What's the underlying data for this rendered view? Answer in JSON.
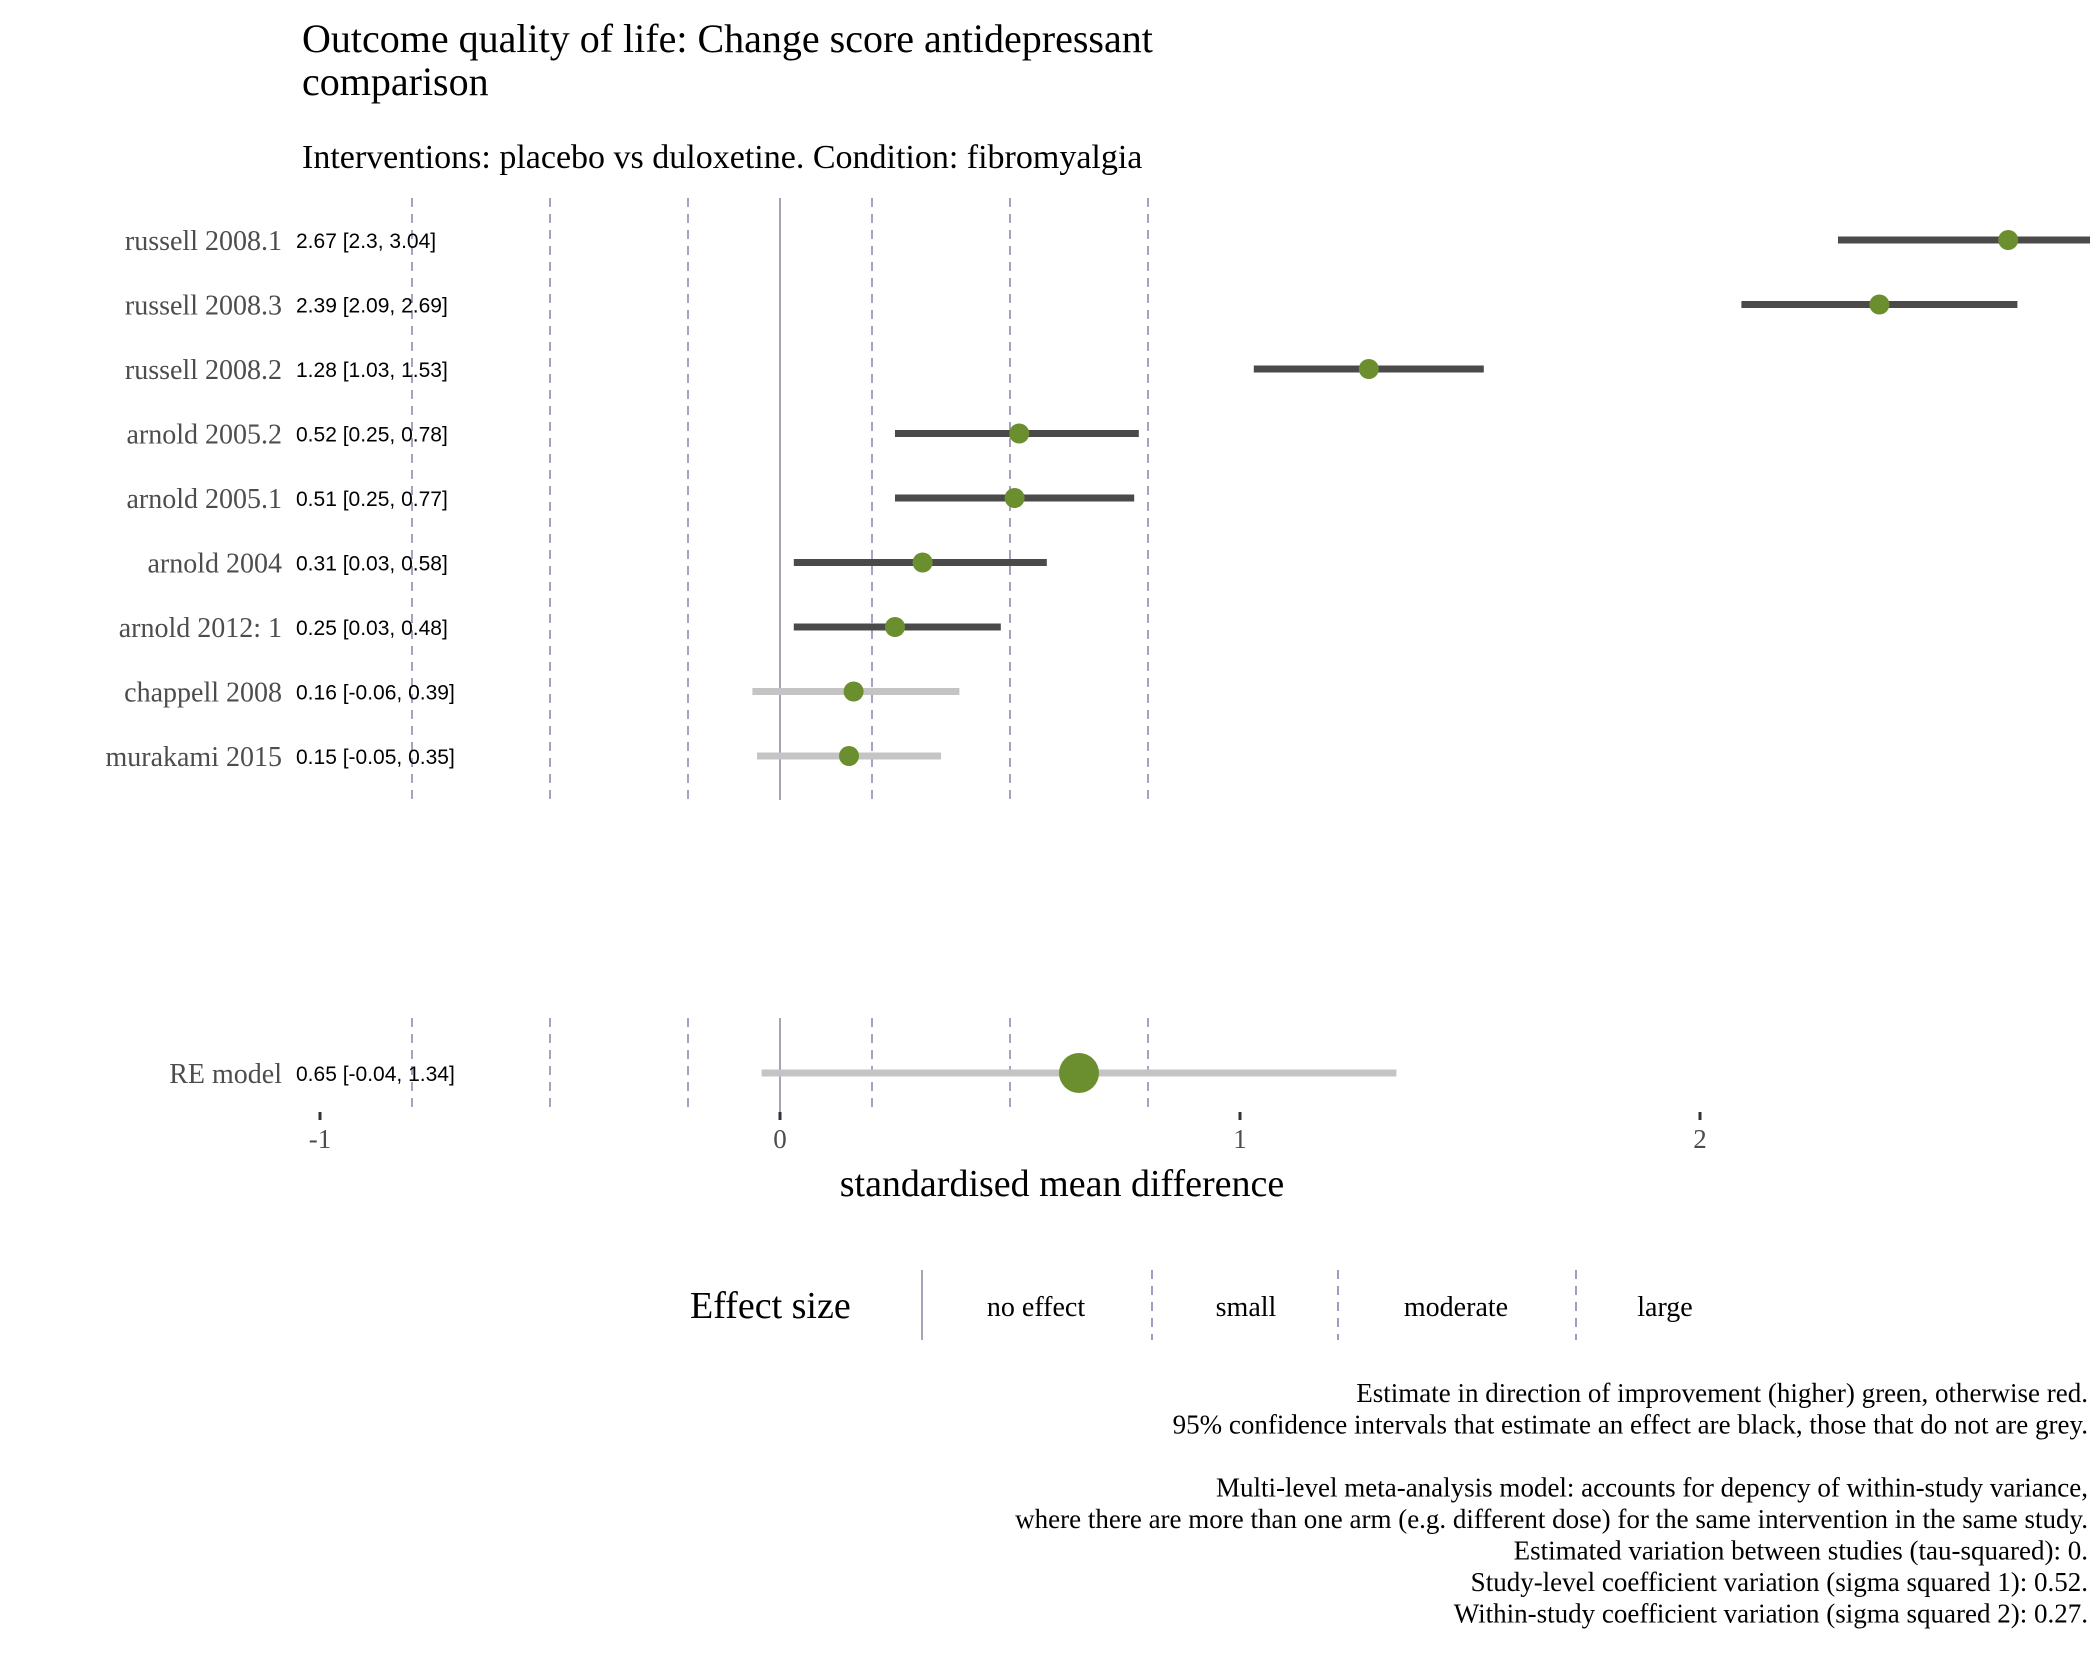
{
  "chart_data": {
    "type": "forest",
    "title": "Outcome quality of life: Change score antidepressant comparison",
    "title_lines": [
      "Outcome quality of life: Change score antidepressant",
      "comparison"
    ],
    "subtitle": "Interventions: placebo vs duloxetine. Condition: fibromyalgia",
    "xlabel": "standardised mean difference",
    "xlim": [
      -1,
      2.7
    ],
    "x_ticks": [
      -1,
      0,
      1,
      2
    ],
    "x_tick_labels": [
      "-1",
      "0",
      "1",
      "2"
    ],
    "reference_lines": [
      {
        "x": 0,
        "type": "solid",
        "category": "no effect"
      },
      {
        "x": -0.2,
        "type": "dashed",
        "category": "small"
      },
      {
        "x": 0.2,
        "type": "dashed",
        "category": "small"
      },
      {
        "x": -0.5,
        "type": "dashed",
        "category": "moderate"
      },
      {
        "x": 0.5,
        "type": "dashed",
        "category": "moderate"
      },
      {
        "x": -0.8,
        "type": "dashed",
        "category": "large"
      },
      {
        "x": 0.8,
        "type": "dashed",
        "category": "large"
      }
    ],
    "studies": [
      {
        "label": "russell 2008.1",
        "estimate": 2.67,
        "ci": [
          2.3,
          3.04
        ],
        "text": "2.67 [2.3, 3.04]",
        "significant": true
      },
      {
        "label": "russell 2008.3",
        "estimate": 2.39,
        "ci": [
          2.09,
          2.69
        ],
        "text": "2.39 [2.09, 2.69]",
        "significant": true
      },
      {
        "label": "russell 2008.2",
        "estimate": 1.28,
        "ci": [
          1.03,
          1.53
        ],
        "text": "1.28 [1.03, 1.53]",
        "significant": true
      },
      {
        "label": "arnold 2005.2",
        "estimate": 0.52,
        "ci": [
          0.25,
          0.78
        ],
        "text": "0.52 [0.25, 0.78]",
        "significant": true
      },
      {
        "label": "arnold 2005.1",
        "estimate": 0.51,
        "ci": [
          0.25,
          0.77
        ],
        "text": "0.51 [0.25, 0.77]",
        "significant": true
      },
      {
        "label": "arnold 2004",
        "estimate": 0.31,
        "ci": [
          0.03,
          0.58
        ],
        "text": "0.31 [0.03, 0.58]",
        "significant": true
      },
      {
        "label": "arnold 2012: 1",
        "estimate": 0.25,
        "ci": [
          0.03,
          0.48
        ],
        "text": "0.25 [0.03, 0.48]",
        "significant": true
      },
      {
        "label": "chappell 2008",
        "estimate": 0.16,
        "ci": [
          -0.06,
          0.39
        ],
        "text": "0.16 [-0.06, 0.39]",
        "significant": false
      },
      {
        "label": "murakami 2015",
        "estimate": 0.15,
        "ci": [
          -0.05,
          0.35
        ],
        "text": "0.15 [-0.05, 0.35]",
        "significant": false
      }
    ],
    "summary": {
      "label": "RE model",
      "estimate": 0.65,
      "ci": [
        -0.04,
        1.34
      ],
      "text": "0.65 [-0.04, 1.34]",
      "significant": false
    },
    "legend": {
      "title": "Effect size",
      "entries": [
        {
          "label": "no effect",
          "line": "solid"
        },
        {
          "label": "small",
          "line": "dashed"
        },
        {
          "label": "moderate",
          "line": "dashed"
        },
        {
          "label": "large",
          "line": "dashed"
        }
      ],
      "placement": "bottom"
    },
    "caption_lines": [
      "Estimate in direction of improvement (higher) green, otherwise red.",
      "95% confidence intervals that estimate an effect are black, those that do not are grey.",
      "",
      "Multi-level meta-analysis model: accounts for depency of within-study variance,",
      "where there are more than one arm (e.g. different dose) for the same intervention in the same study.",
      "Estimated variation between studies (tau-squared): 0.",
      "Study-level coefficient variation (sigma squared 1): 0.52.",
      "Within-study coefficient variation (sigma squared 2): 0.27."
    ],
    "colors": {
      "point": "#6b8e2e",
      "ci_significant": "#4a4a4a",
      "ci_nonsignificant": "#c4c4c4",
      "zero_line": "#8a8fa3",
      "ref_line": "#8585ad",
      "text": "#000000",
      "label_text": "#4d4d4d"
    },
    "grid": false
  }
}
